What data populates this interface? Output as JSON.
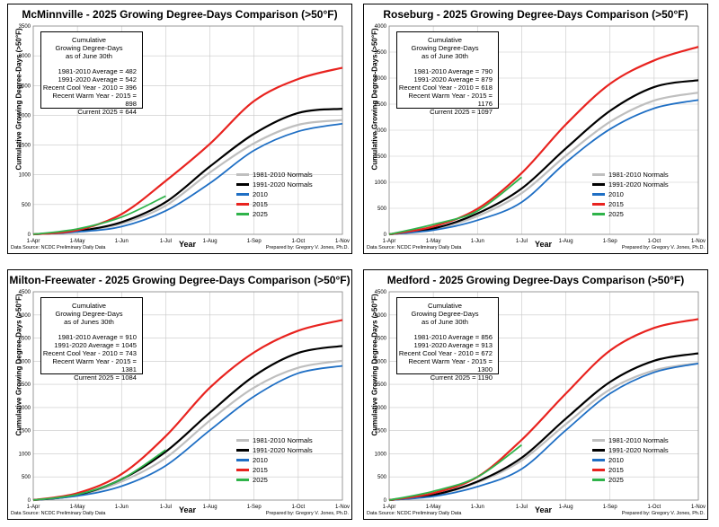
{
  "common": {
    "ylabel": "Cumulative Growing Degree-Days (>50°F)",
    "xlabel": "Year",
    "source": "Data Source: NCDC Preliminary Daily Data",
    "prepared": "Prepared by: Gregory V. Jones, Ph.D.",
    "legend": [
      "1981-2010 Normals",
      "1991-2020 Normals",
      "2010",
      "2015",
      "2025"
    ],
    "colors": {
      "n8110": "#bfbfbf",
      "n9120": "#000000",
      "y2010": "#1f6fc4",
      "y2015": "#e8231f",
      "y2025": "#2fb34a"
    }
  },
  "chart_data": [
    {
      "type": "line",
      "title": "McMinnville - 2025 Growing Degree-Days Comparison (>50°F)",
      "info_header": [
        "Cumulative",
        "Growing Degree-Days",
        "as of June 30th"
      ],
      "info_lines": [
        "1981-2010 Average = 482",
        "1991-2020 Average = 542",
        "Recent Cool Year - 2010 = 396",
        "Recent Warm Year - 2015 = 898",
        "Current 2025 = 644"
      ],
      "ylim": [
        0,
        3500
      ],
      "yticks": [
        "0",
        "500",
        "1000",
        "1500",
        "2000",
        "2500",
        "3000",
        "3500"
      ],
      "xticks": [
        "1-Apr",
        "1-May",
        "1-Jun",
        "1-Jul",
        "1-Aug",
        "1-Sep",
        "1-Oct",
        "1-Nov"
      ],
      "series": [
        {
          "name": "1981-2010 Normals",
          "values": [
            0,
            50,
            180,
            482,
            1040,
            1530,
            1840,
            1920
          ]
        },
        {
          "name": "1991-2020 Normals",
          "values": [
            0,
            55,
            205,
            542,
            1140,
            1690,
            2040,
            2110
          ]
        },
        {
          "name": "2010",
          "values": [
            0,
            40,
            130,
            396,
            860,
            1410,
            1730,
            1860
          ]
        },
        {
          "name": "2015",
          "values": [
            0,
            70,
            340,
            898,
            1520,
            2240,
            2610,
            2800
          ]
        },
        {
          "name": "2025",
          "values": [
            0,
            90,
            290,
            644
          ]
        }
      ]
    },
    {
      "type": "line",
      "title": "Roseburg - 2025 Growing Degree-Days Comparison (>50°F)",
      "info_header": [
        "Cumulative",
        "Growing Degree-Days",
        "as of June 30th"
      ],
      "info_lines": [
        "1981-2010 Average = 790",
        "1991-2020 Average = 879",
        "Recent Cool Year - 2010 = 618",
        "Recent Warm Year - 2015 = 1176",
        "Current 2025 = 1097"
      ],
      "ylim": [
        0,
        4000
      ],
      "yticks": [
        "0",
        "500",
        "1000",
        "1500",
        "2000",
        "2500",
        "3000",
        "3500",
        "4000"
      ],
      "xticks": [
        "1-Apr",
        "1-May",
        "1-Jun",
        "1-Jul",
        "1-Aug",
        "1-Sep",
        "1-Oct",
        "1-Nov"
      ],
      "series": [
        {
          "name": "1981-2010 Normals",
          "values": [
            0,
            100,
            350,
            790,
            1510,
            2160,
            2570,
            2720
          ]
        },
        {
          "name": "1991-2020 Normals",
          "values": [
            0,
            110,
            400,
            879,
            1650,
            2370,
            2830,
            2960
          ]
        },
        {
          "name": "2010",
          "values": [
            0,
            80,
            270,
            618,
            1380,
            2020,
            2420,
            2580
          ]
        },
        {
          "name": "2015",
          "values": [
            0,
            150,
            490,
            1176,
            2110,
            2890,
            3340,
            3600
          ]
        },
        {
          "name": "2025",
          "values": [
            0,
            190,
            450,
            1097
          ]
        }
      ]
    },
    {
      "type": "line",
      "title": "Milton-Freewater - 2025 Growing Degree-Days Comparison (>50°F)",
      "info_header": [
        "Cumulative",
        "Growing Degree-Days",
        "as of Junes 30th"
      ],
      "info_lines": [
        "1981-2010 Average = 910",
        "1991-2020 Average = 1045",
        "Recent Cool Year - 2010 = 743",
        "Recent Warm Year - 2015 = 1381",
        "Current 2025 = 1084"
      ],
      "ylim": [
        0,
        4500
      ],
      "yticks": [
        "0",
        "500",
        "1000",
        "1500",
        "2000",
        "2500",
        "3000",
        "3500",
        "4000",
        "4500"
      ],
      "xticks": [
        "1-Apr",
        "1-May",
        "1-Jun",
        "1-Jul",
        "1-Aug",
        "1-Sep",
        "1-Oct",
        "1-Nov"
      ],
      "series": [
        {
          "name": "1981-2010 Normals",
          "values": [
            0,
            100,
            400,
            910,
            1720,
            2430,
            2860,
            3010
          ]
        },
        {
          "name": "1991-2020 Normals",
          "values": [
            0,
            110,
            450,
            1045,
            1890,
            2680,
            3180,
            3330
          ]
        },
        {
          "name": "2010",
          "values": [
            0,
            90,
            300,
            743,
            1510,
            2240,
            2740,
            2900
          ]
        },
        {
          "name": "2015",
          "values": [
            0,
            150,
            560,
            1381,
            2430,
            3190,
            3660,
            3890
          ]
        },
        {
          "name": "2025",
          "values": [
            0,
            120,
            450,
            1084
          ]
        }
      ]
    },
    {
      "type": "line",
      "title": "Medford - 2025 Growing Degree-Days Comparison (>50°F)",
      "info_header": [
        "Cumulative",
        "Growing Degree-Days",
        "as of June 30th"
      ],
      "info_lines": [
        "1981-2010 Average = 856",
        "1991-2020 Average = 913",
        "Recent Cool Year - 2010 = 672",
        "Recent Warm Year - 2015 = 1300",
        "Current 2025 = 1190"
      ],
      "ylim": [
        0,
        4500
      ],
      "yticks": [
        "0",
        "500",
        "1000",
        "1500",
        "2000",
        "2500",
        "3000",
        "3500",
        "4000",
        "4500"
      ],
      "xticks": [
        "1-Apr",
        "1-May",
        "1-Jun",
        "1-Jul",
        "1-Aug",
        "1-Sep",
        "1-Oct",
        "1-Nov"
      ],
      "series": [
        {
          "name": "1981-2010 Normals",
          "values": [
            0,
            100,
            380,
            856,
            1640,
            2390,
            2800,
            2960
          ]
        },
        {
          "name": "1991-2020 Normals",
          "values": [
            0,
            110,
            400,
            913,
            1760,
            2550,
            3010,
            3170
          ]
        },
        {
          "name": "2010",
          "values": [
            0,
            80,
            290,
            672,
            1510,
            2300,
            2760,
            2950
          ]
        },
        {
          "name": "2015",
          "values": [
            0,
            150,
            500,
            1300,
            2300,
            3230,
            3720,
            3910
          ]
        },
        {
          "name": "2025",
          "values": [
            0,
            190,
            500,
            1190
          ]
        }
      ]
    }
  ]
}
